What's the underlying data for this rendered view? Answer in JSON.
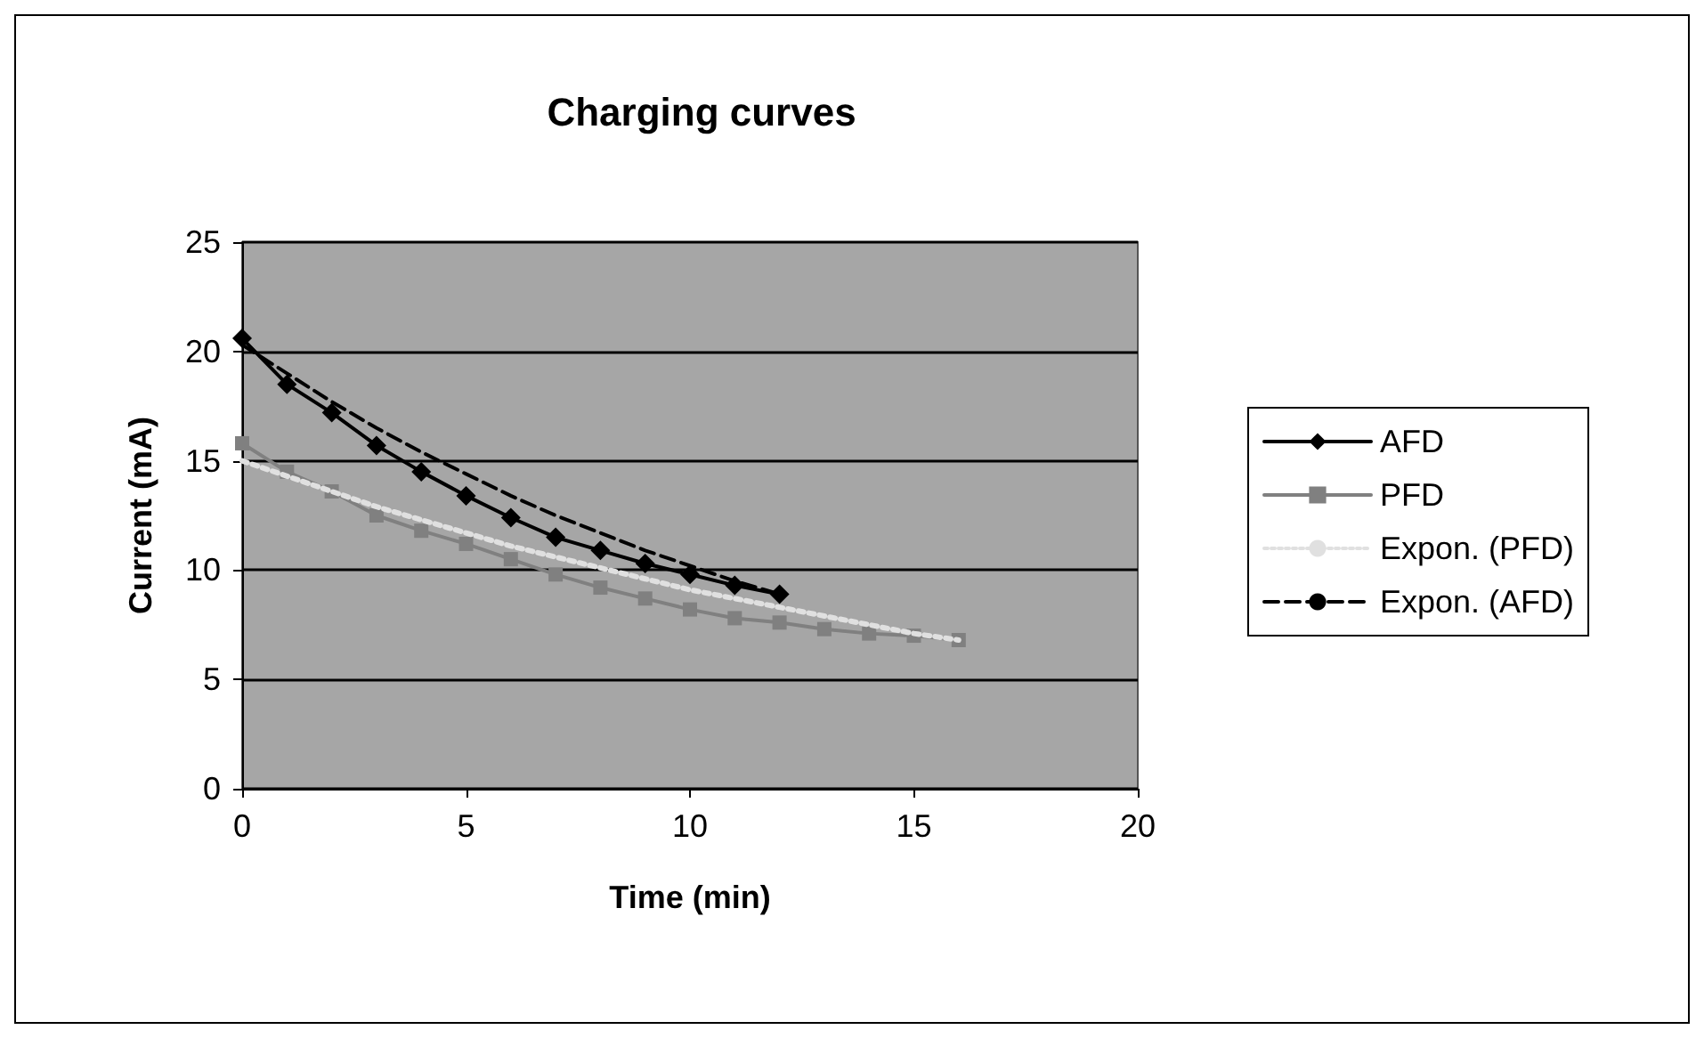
{
  "chart_data": {
    "type": "line",
    "title": "Charging curves",
    "xlabel": "Time (min)",
    "ylabel": "Current (mA)",
    "xlim": [
      0,
      20
    ],
    "xticks": [
      0,
      5,
      10,
      15,
      20
    ],
    "ylim": [
      0,
      25
    ],
    "yticks": [
      0,
      5,
      10,
      15,
      20,
      25
    ],
    "grid": "y",
    "legend": "right",
    "series": [
      {
        "name": "AFD",
        "color": "#000000",
        "marker": "diamond",
        "line_style": "solid",
        "x": [
          0,
          1,
          2,
          3,
          4,
          5,
          6,
          7,
          8,
          9,
          10,
          11,
          12
        ],
        "values": [
          20.6,
          18.5,
          17.2,
          15.7,
          14.5,
          13.4,
          12.4,
          11.5,
          10.9,
          10.3,
          9.8,
          9.3,
          8.9
        ]
      },
      {
        "name": "PFD",
        "color": "#808080",
        "marker": "square",
        "line_style": "solid",
        "x": [
          0,
          1,
          2,
          3,
          4,
          5,
          6,
          7,
          8,
          9,
          10,
          11,
          12,
          13,
          14,
          15,
          16
        ],
        "values": [
          15.8,
          14.5,
          13.6,
          12.5,
          11.8,
          11.2,
          10.5,
          9.8,
          9.2,
          8.7,
          8.2,
          7.8,
          7.6,
          7.3,
          7.1,
          7.0,
          6.8
        ]
      },
      {
        "name": "Expon. (PFD)",
        "color": "#e0e0e0",
        "marker": "none",
        "line_style": "dotted",
        "x": [
          0,
          1,
          2,
          3,
          4,
          5,
          6,
          7,
          8,
          9,
          10,
          11,
          12,
          13,
          14,
          15,
          16
        ],
        "values": [
          15.0,
          14.3,
          13.6,
          12.9,
          12.3,
          11.7,
          11.1,
          10.6,
          10.1,
          9.6,
          9.1,
          8.7,
          8.3,
          7.9,
          7.5,
          7.1,
          6.8
        ]
      },
      {
        "name": "Expon. (AFD)",
        "color": "#000000",
        "marker": "none",
        "line_style": "dashed",
        "x": [
          0,
          1,
          2,
          3,
          4,
          5,
          6,
          7,
          8,
          9,
          10,
          11,
          12
        ],
        "values": [
          20.3,
          19.0,
          17.7,
          16.5,
          15.4,
          14.4,
          13.4,
          12.5,
          11.7,
          10.9,
          10.2,
          9.5,
          8.9
        ]
      }
    ]
  }
}
